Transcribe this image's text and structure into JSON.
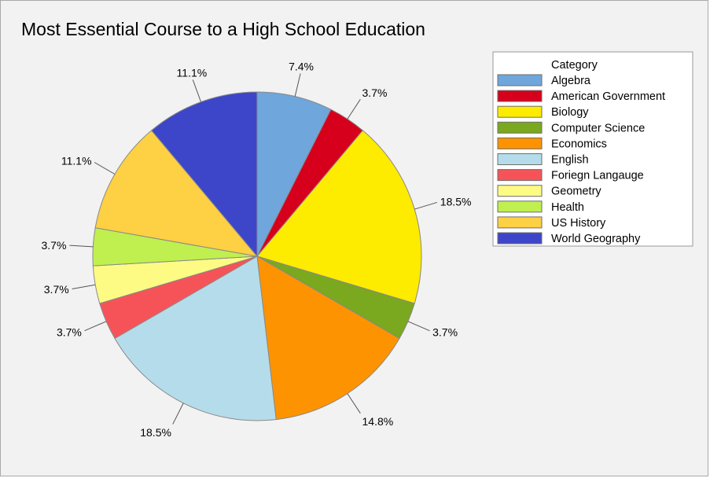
{
  "chart_data": {
    "type": "pie",
    "title": "Most Essential Course to a High School Education",
    "legend_title": "Category",
    "legend_position": "right",
    "slices": [
      {
        "category": "Algebra",
        "value": 7.4,
        "label": "7.4%",
        "color": "#6fa6dc"
      },
      {
        "category": "American Government",
        "value": 3.7,
        "label": "3.7%",
        "color": "#d6001c"
      },
      {
        "category": "Biology",
        "value": 18.5,
        "label": "18.5%",
        "color": "#fdeb00"
      },
      {
        "category": "Computer Science",
        "value": 3.7,
        "label": "3.7%",
        "color": "#7aa81e"
      },
      {
        "category": "Economics",
        "value": 14.8,
        "label": "14.8%",
        "color": "#fd9300"
      },
      {
        "category": "English",
        "value": 18.5,
        "label": "18.5%",
        "color": "#b5dcea"
      },
      {
        "category": "Foriegn Langauge",
        "value": 3.7,
        "label": "3.7%",
        "color": "#f65359"
      },
      {
        "category": "Geometry",
        "value": 3.7,
        "label": "3.7%",
        "color": "#fdfb84"
      },
      {
        "category": "Health",
        "value": 3.7,
        "label": "3.7%",
        "color": "#c0ef50"
      },
      {
        "category": "US History",
        "value": 11.1,
        "label": "11.1%",
        "color": "#fed043"
      },
      {
        "category": "World Geography",
        "value": 11.1,
        "label": "11.1%",
        "color": "#3d46c8"
      }
    ],
    "start_angle": "12 o'clock",
    "direction": "clockwise"
  }
}
